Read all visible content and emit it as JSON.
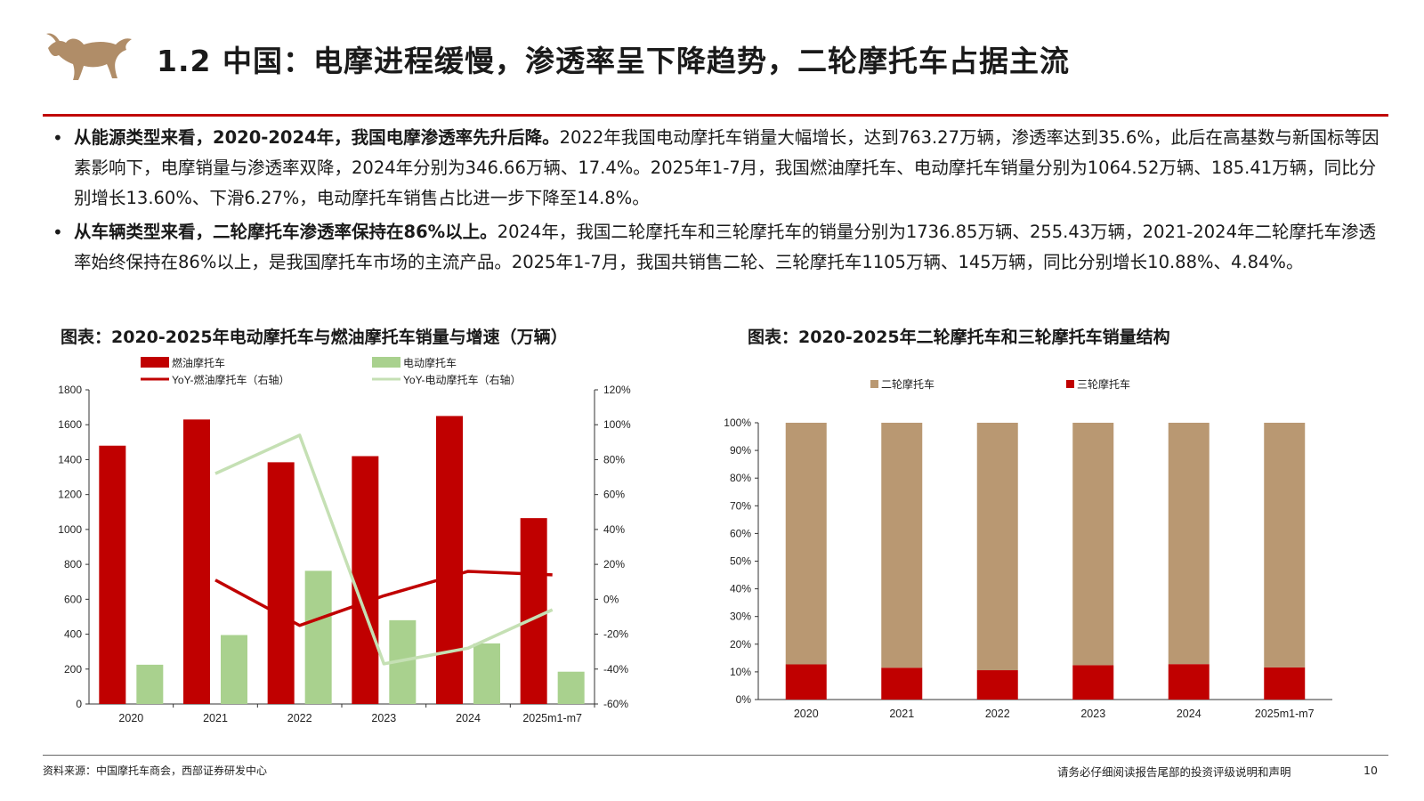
{
  "header": {
    "title": "1.2 中国：电摩进程缓慢，渗透率呈下降趋势，二轮摩托车占据主流"
  },
  "bullets": [
    {
      "lead": "从能源类型来看，2020-2024年，我国电摩渗透率先升后降。",
      "text": "2022年我国电动摩托车销量大幅增长，达到763.27万辆，渗透率达到35.6%，此后在高基数与新国标等因素影响下，电摩销量与渗透率双降，2024年分别为346.66万辆、17.4%。2025年1-7月，我国燃油摩托车、电动摩托车销量分别为1064.52万辆、185.41万辆，同比分别增长13.60%、下滑6.27%，电动摩托车销售占比进一步下降至14.8%。"
    },
    {
      "lead": "从车辆类型来看，二轮摩托车渗透率保持在86%以上。",
      "text": "2024年，我国二轮摩托车和三轮摩托车的销量分别为1736.85万辆、255.43万辆，2021-2024年二轮摩托车渗透率始终保持在86%以上，是我国摩托车市场的主流产品。2025年1-7月，我国共销售二轮、三轮摩托车1105万辆、145万辆，同比分别增长10.88%、4.84%。"
    }
  ],
  "chart_titles": {
    "left": "图表：2020-2025年电动摩托车与燃油摩托车销量与增速（万辆）",
    "right": "图表：2020-2025年二轮摩托车和三轮摩托车销量结构"
  },
  "chart_data": [
    {
      "type": "bar",
      "categories": [
        "2020",
        "2021",
        "2022",
        "2023",
        "2024",
        "2025m1-m7"
      ],
      "series": [
        {
          "name": "燃油摩托车",
          "axis": "left",
          "kind": "bar",
          "color": "#c00000",
          "values": [
            1480,
            1630,
            1385,
            1420,
            1650,
            1065
          ]
        },
        {
          "name": "电动摩托车",
          "axis": "left",
          "kind": "bar",
          "color": "#a9d18e",
          "values": [
            225,
            395,
            763,
            480,
            347,
            185
          ]
        },
        {
          "name": "YoY-燃油摩托车（右轴）",
          "axis": "right",
          "kind": "line",
          "color": "#c00000",
          "values": [
            null,
            11,
            -15,
            2,
            16,
            14
          ]
        },
        {
          "name": "YoY-电动摩托车（右轴）",
          "axis": "right",
          "kind": "line",
          "color": "#c5e0b4",
          "values": [
            null,
            72,
            94,
            -37,
            -28,
            -6
          ]
        }
      ],
      "ylim": [
        0,
        1800
      ],
      "yticks": [
        "0",
        "200",
        "400",
        "600",
        "800",
        "1000",
        "1200",
        "1400",
        "1600",
        "1800"
      ],
      "y2lim": [
        -60,
        120
      ],
      "y2ticks": [
        "-60%",
        "-40%",
        "-20%",
        "0%",
        "20%",
        "40%",
        "60%",
        "80%",
        "100%",
        "120%"
      ],
      "legend": "top",
      "grid": false
    },
    {
      "type": "bar",
      "stacked": true,
      "categories": [
        "2020",
        "2021",
        "2022",
        "2023",
        "2024",
        "2025m1-m7"
      ],
      "series": [
        {
          "name": "二轮摩托车",
          "color": "#b99872",
          "values": [
            87.3,
            88.5,
            89.4,
            87.6,
            87.2,
            88.4
          ]
        },
        {
          "name": "三轮摩托车",
          "color": "#c00000",
          "values": [
            12.7,
            11.5,
            10.6,
            12.4,
            12.8,
            11.6
          ]
        }
      ],
      "ylim": [
        0,
        100
      ],
      "yticks": [
        "0%",
        "10%",
        "20%",
        "30%",
        "40%",
        "50%",
        "60%",
        "70%",
        "80%",
        "90%",
        "100%"
      ],
      "legend": "top",
      "grid": false
    }
  ],
  "footer": {
    "source": "资料来源：中国摩托车商会，西部证券研发中心",
    "disclaimer": "请务必仔细阅读报告尾部的投资评级说明和声明",
    "page": "10"
  }
}
